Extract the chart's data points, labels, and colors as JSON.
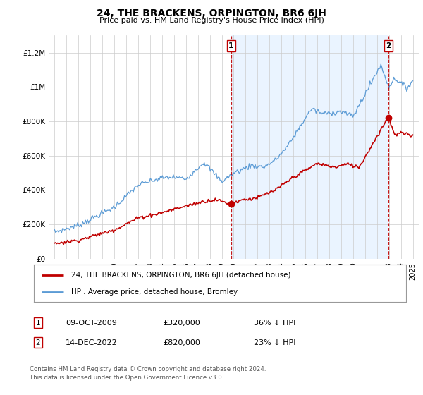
{
  "title": "24, THE BRACKENS, ORPINGTON, BR6 6JH",
  "subtitle": "Price paid vs. HM Land Registry's House Price Index (HPI)",
  "ylabel_ticks": [
    "£0",
    "£200K",
    "£400K",
    "£600K",
    "£800K",
    "£1M",
    "£1.2M"
  ],
  "ytick_vals": [
    0,
    200000,
    400000,
    600000,
    800000,
    1000000,
    1200000
  ],
  "ylim": [
    0,
    1300000
  ],
  "xlim_start": 1994.5,
  "xlim_end": 2025.5,
  "hpi_color": "#5b9bd5",
  "hpi_fill_color": "#ddeeff",
  "price_color": "#c00000",
  "sale1_x": 2009.78,
  "sale1_y": 320000,
  "sale2_x": 2022.96,
  "sale2_y": 820000,
  "legend_line1": "24, THE BRACKENS, ORPINGTON, BR6 6JH (detached house)",
  "legend_line2": "HPI: Average price, detached house, Bromley",
  "table_row1_num": "1",
  "table_row1_date": "09-OCT-2009",
  "table_row1_price": "£320,000",
  "table_row1_hpi": "36% ↓ HPI",
  "table_row2_num": "2",
  "table_row2_date": "14-DEC-2022",
  "table_row2_price": "£820,000",
  "table_row2_hpi": "23% ↓ HPI",
  "footer": "Contains HM Land Registry data © Crown copyright and database right 2024.\nThis data is licensed under the Open Government Licence v3.0.",
  "background_color": "#ffffff"
}
